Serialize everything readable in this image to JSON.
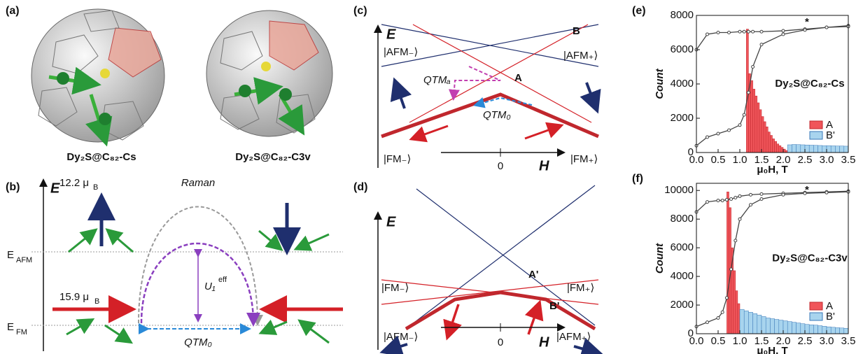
{
  "figure": {
    "a": {
      "label": "(a)",
      "captions": [
        "Dy₂S@C₈₂-Cs",
        "Dy₂S@C₈₂-C3v"
      ]
    },
    "b": {
      "label": "(b)",
      "axis": "E",
      "moment_afm": "12.2 μ",
      "moment_afm_sub": "B",
      "raman": "Raman",
      "e_afm": "E",
      "e_afm_sub": "AFM",
      "barrier": "U₁",
      "barrier_sup": "eff",
      "moment_fm": "15.9 μ",
      "moment_fm_sub": "B",
      "e_fm": "E",
      "e_fm_sub": "FM",
      "qtm": "QTM₀"
    },
    "c": {
      "label": "(c)",
      "axis_e": "E",
      "point_b": "B",
      "afm_minus": "|AFM₋⟩",
      "afm_plus": "|AFM₊⟩",
      "qtm_a": "QTMₐ",
      "point_a": "A",
      "qtm_0": "QTM₀",
      "fm_minus": "|FM₋⟩",
      "fm_plus": "|FM₊⟩",
      "zero": "0",
      "axis_h": "H"
    },
    "d": {
      "label": "(d)",
      "axis_e": "E",
      "point_a": "A'",
      "fm_minus": "|FM₋⟩",
      "fm_plus": "|FM₊⟩",
      "point_b": "B'",
      "afm_minus": "|AFM₋⟩",
      "afm_plus": "|AFM₊⟩",
      "zero": "0",
      "axis_h": "H"
    }
  },
  "chart_data": [
    {
      "type": "histogram",
      "panel_label": "(e)",
      "title": "Dy₂S@C₈₂-Cs",
      "xlabel": "μ₀H, T",
      "ylabel": "Count",
      "annotation": "*",
      "xlim": [
        0,
        3.5
      ],
      "xticks": [
        {
          "value": 0,
          "label": "0.0"
        },
        0.5,
        {
          "value": 1,
          "label": "1.0"
        },
        1.5,
        {
          "value": 2,
          "label": "2.0"
        },
        2.5,
        {
          "value": 3,
          "label": "3.0"
        },
        3.5
      ],
      "ylim": [
        0,
        8000
      ],
      "yticks": [
        0,
        2000,
        4000,
        6000,
        8000
      ],
      "legend": "lower right",
      "series": [
        {
          "name": "A",
          "color": "#f0555a",
          "bins": [
            1.15,
            1.2,
            1.25,
            1.3,
            1.35,
            1.4,
            1.45,
            1.5,
            1.55,
            1.6,
            1.65,
            1.7,
            1.75,
            1.8,
            1.85,
            1.9,
            1.95,
            2,
            2.05,
            2.1,
            2.15
          ],
          "values": [
            7200,
            4600,
            4200,
            3700,
            3300,
            2900,
            2500,
            2100,
            1800,
            1500,
            1200,
            1000,
            800,
            650,
            500,
            400,
            300,
            200,
            120,
            60
          ]
        },
        {
          "name": "B'",
          "color": "#a8d4ee",
          "bins": [
            2.1,
            2.2,
            2.3,
            2.4,
            2.5,
            2.6,
            2.7,
            2.8,
            2.9,
            3,
            3.1,
            3.2,
            3.3,
            3.4,
            3.5
          ],
          "values": [
            450,
            470,
            460,
            450,
            440,
            430,
            420,
            410,
            400,
            400,
            390,
            380,
            380,
            370
          ]
        }
      ],
      "curves": {
        "x": [
          0,
          0.25,
          0.5,
          0.75,
          1,
          1.1,
          1.2,
          1.3,
          1.5,
          2,
          2.5,
          3,
          3.5
        ],
        "color": "#444",
        "series": [
          {
            "values": [
              6000,
              6900,
              7000,
              7000,
              7050,
              7050,
              7050,
              7050,
              7050,
              7100,
              7200,
              7300,
              7400
            ]
          },
          {
            "values": [
              400,
              900,
              1100,
              1300,
              1600,
              2200,
              3500,
              5000,
              6300,
              6900,
              7150,
              7300,
              7350
            ]
          }
        ]
      }
    },
    {
      "type": "histogram",
      "panel_label": "(f)",
      "title": "Dy₂S@C₈₂-C3v",
      "xlabel": "μ₀H, T",
      "ylabel": "Count",
      "annotation": "*",
      "xlim": [
        0,
        3.5
      ],
      "xticks": [
        {
          "value": 0,
          "label": "0.0"
        },
        0.5,
        {
          "value": 1,
          "label": "1.0"
        },
        1.5,
        {
          "value": 2,
          "label": "2.0"
        },
        2.5,
        {
          "value": 3,
          "label": "3.0"
        },
        3.5
      ],
      "ylim": [
        0,
        10500
      ],
      "yticks": [
        0,
        2000,
        4000,
        6000,
        8000,
        10000
      ],
      "legend": "lower right",
      "series": [
        {
          "name": "A",
          "color": "#f0555a",
          "bins": [
            0.7,
            0.75,
            0.8,
            0.85,
            0.9,
            0.95,
            1,
            1.05,
            1.1,
            1.15,
            1.2
          ],
          "values": [
            9900,
            8800,
            6000,
            4400,
            3000,
            2100,
            1500,
            1000,
            600,
            300
          ]
        },
        {
          "name": "B'",
          "color": "#a8d4ee",
          "bins": [
            1,
            1.1,
            1.2,
            1.3,
            1.4,
            1.5,
            1.6,
            1.7,
            1.8,
            1.9,
            2,
            2.1,
            2.2,
            2.3,
            2.4,
            2.5,
            2.6,
            2.7,
            2.8,
            2.9,
            3,
            3.1,
            3.2,
            3.3,
            3.4,
            3.5
          ],
          "values": [
            1700,
            1600,
            1500,
            1400,
            1300,
            1200,
            1100,
            1050,
            1000,
            950,
            900,
            850,
            800,
            750,
            700,
            650,
            620,
            600,
            560,
            520,
            480,
            450,
            420,
            400,
            380
          ]
        }
      ],
      "curves": {
        "x": [
          0,
          0.25,
          0.5,
          0.6,
          0.7,
          0.8,
          0.9,
          1,
          1.25,
          1.5,
          2,
          2.5,
          3,
          3.5
        ],
        "color": "#444",
        "series": [
          {
            "values": [
              8500,
              9200,
              9300,
              9300,
              9350,
              9400,
              9500,
              9600,
              9700,
              9750,
              9800,
              9850,
              9900,
              9950
            ]
          },
          {
            "values": [
              500,
              800,
              1100,
              1500,
              2500,
              4500,
              6500,
              8000,
              9000,
              9400,
              9700,
              9800,
              9850,
              9900
            ]
          }
        ]
      }
    }
  ]
}
